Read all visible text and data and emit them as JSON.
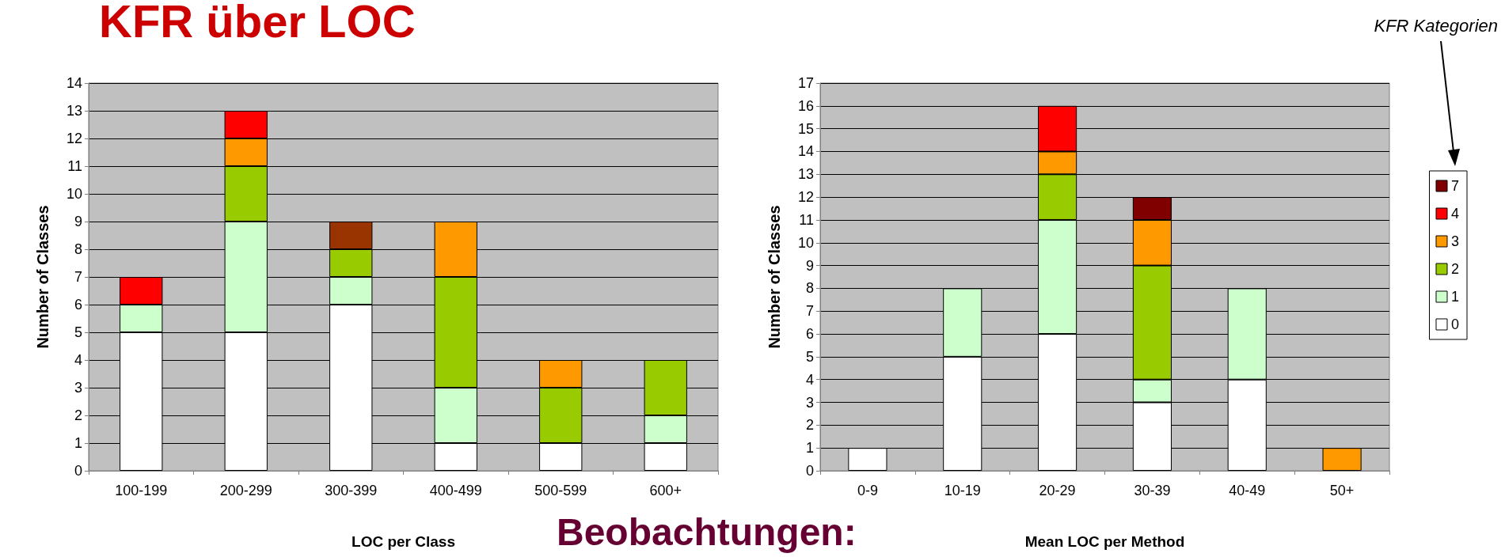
{
  "chart_data": [
    {
      "type": "bar",
      "title": "KFR über LOC",
      "xlabel": "LOC per Class",
      "ylabel": "Number of Classes",
      "annotations": [
        "Beobachtungen:"
      ],
      "stacked": true,
      "grid": "y",
      "legend": false,
      "categories": [
        "100-199",
        "200-299",
        "300-399",
        "400-499",
        "500-599",
        "600+"
      ],
      "ylim": [
        0,
        14
      ],
      "yticks": [
        0,
        1,
        2,
        3,
        4,
        5,
        6,
        7,
        8,
        9,
        10,
        11,
        12,
        13,
        14
      ],
      "series": [
        {
          "color": "#ffffff",
          "values": [
            5,
            5,
            6,
            1,
            1,
            1
          ]
        },
        {
          "color": "#ccffcc",
          "values": [
            1,
            4,
            1,
            2,
            null,
            1
          ]
        },
        {
          "color": "#99cc00",
          "values": [
            null,
            2,
            1,
            4,
            2,
            2
          ]
        },
        {
          "color": "#ff9900",
          "values": [
            null,
            1,
            null,
            2,
            1,
            null
          ]
        },
        {
          "color": "#ff0000",
          "values": [
            1,
            1,
            null,
            null,
            null,
            null
          ]
        },
        {
          "color": "#993300",
          "values": [
            null,
            null,
            1,
            null,
            null,
            null
          ]
        }
      ]
    },
    {
      "type": "bar",
      "xlabel": "Mean LOC per Method",
      "ylabel": "Number of Classes",
      "legend_title": "KFR Kategorien",
      "stacked": true,
      "grid": "y",
      "legend": "right",
      "categories": [
        "0-9",
        "10-19",
        "20-29",
        "30-39",
        "40-49",
        "50+"
      ],
      "ylim": [
        0,
        17
      ],
      "yticks": [
        0,
        1,
        2,
        3,
        4,
        5,
        6,
        7,
        8,
        9,
        10,
        11,
        12,
        13,
        14,
        15,
        16,
        17
      ],
      "series": [
        {
          "name": "0",
          "color": "#ffffff",
          "values": [
            1,
            5,
            6,
            3,
            4,
            null
          ]
        },
        {
          "name": "1",
          "color": "#ccffcc",
          "values": [
            null,
            3,
            5,
            1,
            4,
            null
          ]
        },
        {
          "name": "2",
          "color": "#99cc00",
          "values": [
            null,
            null,
            2,
            5,
            null,
            null
          ]
        },
        {
          "name": "3",
          "color": "#ff9900",
          "values": [
            null,
            null,
            1,
            2,
            null,
            1
          ]
        },
        {
          "name": "4",
          "color": "#ff0000",
          "values": [
            null,
            null,
            2,
            null,
            null,
            null
          ]
        },
        {
          "name": "7",
          "color": "#800000",
          "values": [
            null,
            null,
            null,
            1,
            null,
            null
          ]
        }
      ]
    }
  ]
}
